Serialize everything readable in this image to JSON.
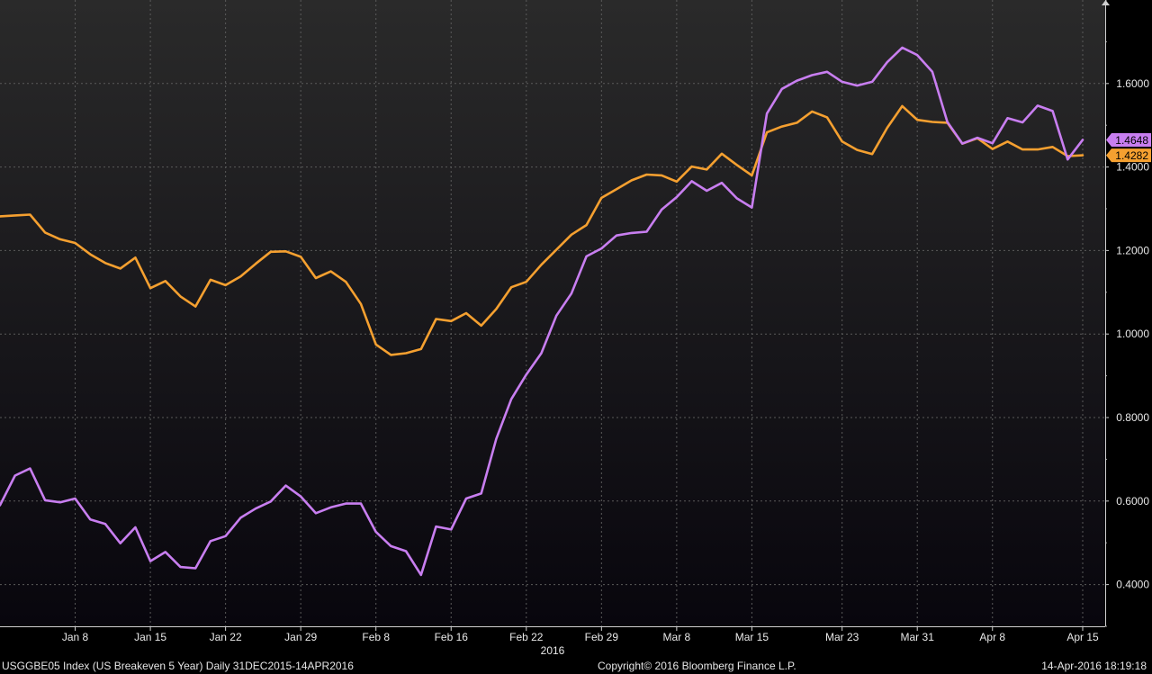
{
  "chart_data": {
    "type": "line",
    "x_ticks": [
      "Jan 8",
      "Jan 15",
      "Jan 22",
      "Jan 29",
      "Feb 8",
      "Feb 16",
      "Feb 22",
      "Feb 29",
      "Mar 8",
      "Mar 15",
      "Mar 23",
      "Mar 31",
      "Apr 8",
      "Apr 15"
    ],
    "x_year_label": "2016",
    "y_ticks": [
      "0.4000",
      "0.6000",
      "0.8000",
      "1.0000",
      "1.2000",
      "1.4000",
      "1.6000"
    ],
    "ylim": [
      0.3,
      1.8
    ],
    "grid": true,
    "y_axis_side": "right",
    "series": [
      {
        "color": "#f5a030",
        "last_label": "1.4282",
        "values": [
          1.282,
          1.284,
          1.286,
          1.243,
          1.227,
          1.218,
          1.191,
          1.17,
          1.157,
          1.183,
          1.11,
          1.127,
          1.09,
          1.066,
          1.13,
          1.117,
          1.138,
          1.168,
          1.197,
          1.198,
          1.185,
          1.134,
          1.15,
          1.125,
          1.072,
          0.975,
          0.95,
          0.954,
          0.964,
          1.036,
          1.031,
          1.05,
          1.02,
          1.06,
          1.112,
          1.125,
          1.166,
          1.202,
          1.238,
          1.261,
          1.326,
          1.347,
          1.368,
          1.382,
          1.38,
          1.365,
          1.401,
          1.394,
          1.432,
          1.405,
          1.38,
          1.483,
          1.497,
          1.506,
          1.533,
          1.519,
          1.461,
          1.441,
          1.431,
          1.494,
          1.546,
          1.513,
          1.508,
          1.506,
          1.456,
          1.469,
          1.443,
          1.461,
          1.442,
          1.442,
          1.448,
          1.426,
          1.428
        ]
      },
      {
        "color": "#c87ef0",
        "last_label": "1.4648",
        "values": [
          0.59,
          0.661,
          0.678,
          0.602,
          0.597,
          0.606,
          0.556,
          0.545,
          0.499,
          0.537,
          0.456,
          0.478,
          0.442,
          0.439,
          0.504,
          0.516,
          0.56,
          0.582,
          0.599,
          0.637,
          0.611,
          0.571,
          0.585,
          0.594,
          0.594,
          0.526,
          0.492,
          0.48,
          0.423,
          0.539,
          0.532,
          0.606,
          0.618,
          0.749,
          0.844,
          0.903,
          0.954,
          1.044,
          1.097,
          1.186,
          1.205,
          1.236,
          1.242,
          1.245,
          1.298,
          1.328,
          1.366,
          1.343,
          1.362,
          1.325,
          1.303,
          1.528,
          1.587,
          1.607,
          1.62,
          1.628,
          1.604,
          1.595,
          1.604,
          1.651,
          1.686,
          1.668,
          1.628,
          1.508,
          1.456,
          1.47,
          1.457,
          1.517,
          1.507,
          1.547,
          1.534,
          1.418,
          1.465
        ]
      }
    ]
  },
  "footer": {
    "left": "USGGBE05 Index (US Breakeven 5 Year)  Daily 31DEC2015-14APR2016",
    "mid": "Copyright© 2016 Bloomberg Finance L.P.",
    "right": "14-Apr-2016 18:19:18"
  }
}
